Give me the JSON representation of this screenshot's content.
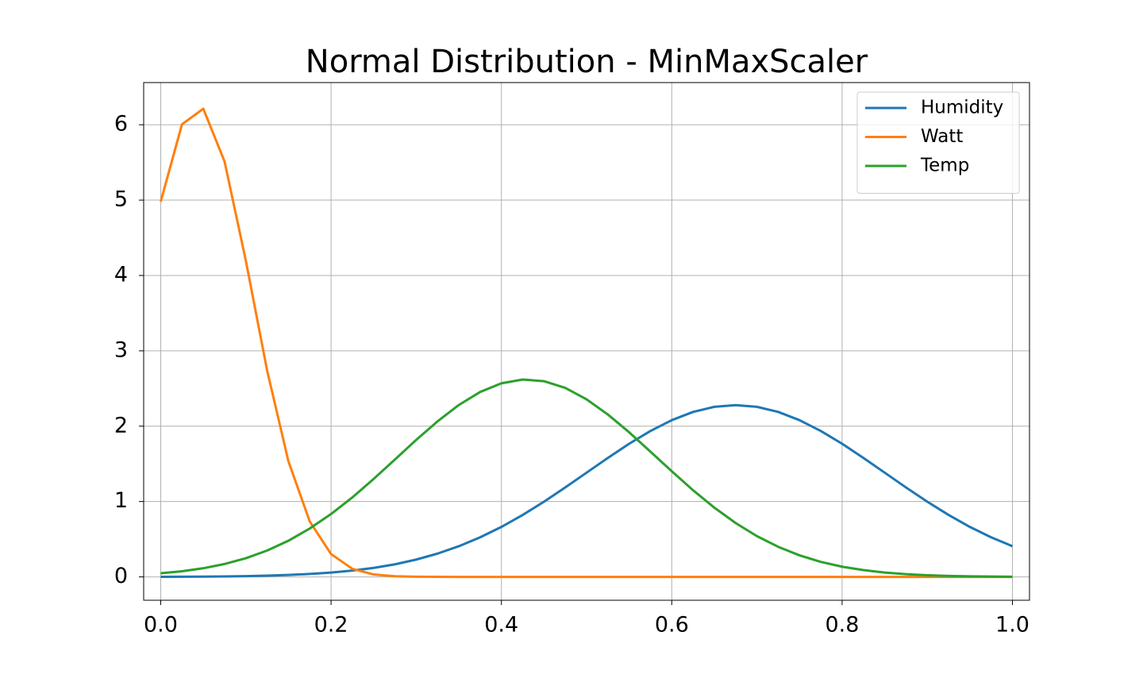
{
  "chart_data": {
    "type": "line",
    "title": "Normal Distribution - MinMaxScaler",
    "x": [
      0,
      0.025,
      0.05,
      0.075,
      0.1,
      0.125,
      0.15,
      0.175,
      0.2,
      0.225,
      0.25,
      0.275,
      0.3,
      0.325,
      0.35,
      0.375,
      0.4,
      0.425,
      0.45,
      0.475,
      0.5,
      0.525,
      0.55,
      0.575,
      0.6,
      0.625,
      0.65,
      0.675,
      0.7,
      0.725,
      0.75,
      0.775,
      0.8,
      0.825,
      0.85,
      0.875,
      0.9,
      0.925,
      0.95,
      0.975,
      1
    ],
    "series": [
      {
        "name": "Humidity",
        "color": "#1f77b4",
        "values": [
          0.0013,
          0.0023,
          0.0039,
          0.0064,
          0.0103,
          0.0163,
          0.0253,
          0.0385,
          0.0573,
          0.0836,
          0.119,
          0.167,
          0.23,
          0.309,
          0.407,
          0.525,
          0.663,
          0.822,
          0.998,
          1.187,
          1.383,
          1.579,
          1.767,
          1.936,
          2.08,
          2.189,
          2.257,
          2.28,
          2.257,
          2.189,
          2.08,
          1.936,
          1.767,
          1.579,
          1.383,
          1.187,
          0.998,
          0.822,
          0.663,
          0.525,
          0.407
        ]
      },
      {
        "name": "Watt",
        "color": "#ff7f0e",
        "values": [
          4.98,
          6.006,
          6.213,
          5.511,
          4.194,
          2.736,
          1.532,
          0.735,
          0.303,
          0.107,
          0.032,
          0.0084,
          0.0019,
          0.0004,
          0,
          0,
          0,
          0,
          0,
          0,
          0,
          0,
          0,
          0,
          0,
          0,
          0,
          0,
          0,
          0,
          0,
          0,
          0,
          0,
          0,
          0,
          0,
          0,
          0,
          0,
          0
        ]
      },
      {
        "name": "Temp",
        "color": "#2ca02c",
        "values": [
          0.048,
          0.075,
          0.115,
          0.171,
          0.248,
          0.35,
          0.48,
          0.642,
          0.834,
          1.055,
          1.3,
          1.558,
          1.818,
          2.064,
          2.281,
          2.454,
          2.569,
          2.619,
          2.597,
          2.508,
          2.356,
          2.155,
          1.919,
          1.662,
          1.402,
          1.15,
          0.919,
          0.715,
          0.541,
          0.399,
          0.286,
          0.199,
          0.135,
          0.09,
          0.058,
          0.036,
          0.022,
          0.013,
          0.0075,
          0.0042,
          0.0023
        ]
      }
    ],
    "xlim": [
      -0.02,
      1.02
    ],
    "ylim": [
      -0.31,
      6.56
    ],
    "xticks": [
      {
        "value": 0,
        "label": "0.0"
      },
      0.2,
      0.4,
      0.6,
      0.8,
      {
        "value": 1,
        "label": "1.0"
      }
    ],
    "yticks": [
      0,
      1,
      2,
      3,
      4,
      5,
      6
    ],
    "grid": true,
    "legend": "upper-right"
  }
}
